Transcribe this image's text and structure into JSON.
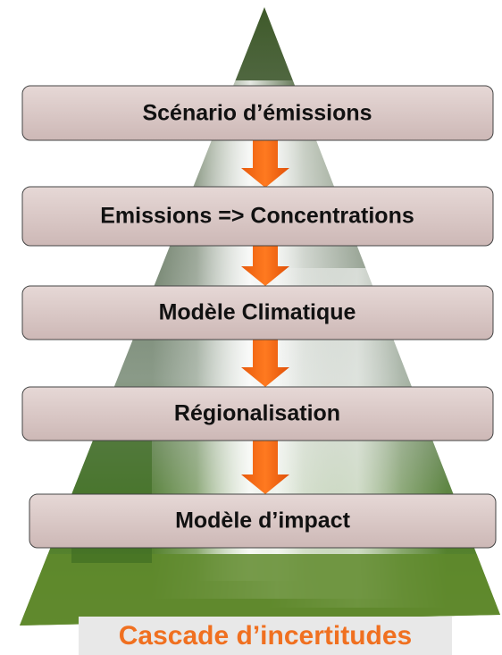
{
  "boxes": [
    {
      "label": "Scénario d’émissions"
    },
    {
      "label": "Emissions => Concentrations"
    },
    {
      "label": "Modèle Climatique"
    },
    {
      "label": "Régionalisation"
    },
    {
      "label": "Modèle d’impact"
    }
  ],
  "caption": "Cascade d’incertitudes"
}
